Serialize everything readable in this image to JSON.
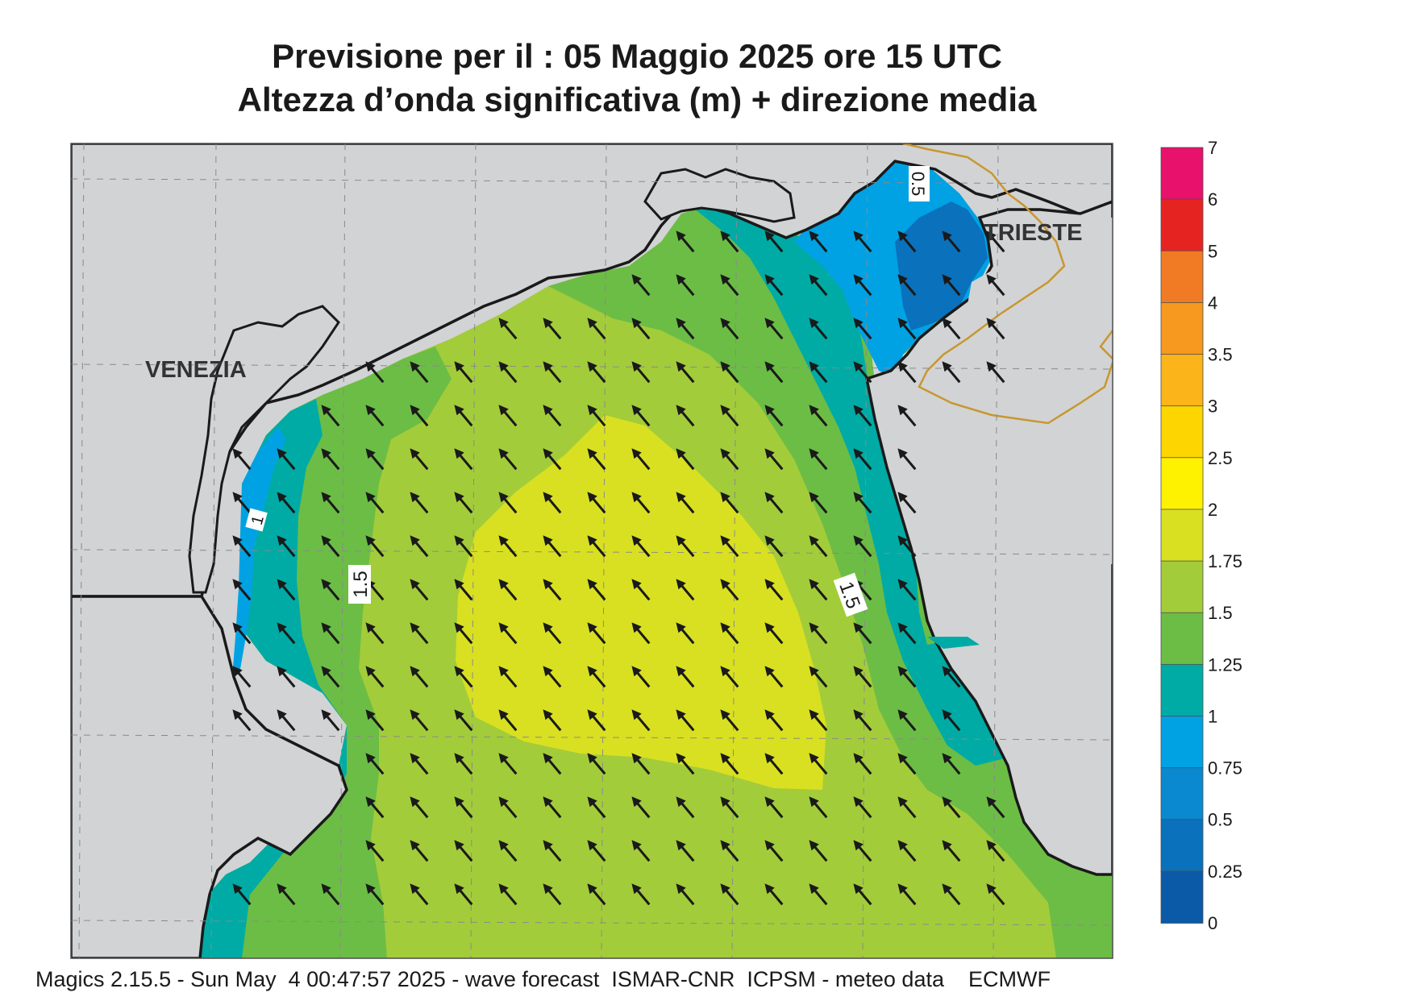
{
  "header": {
    "title_line1": "Previsione per il  :  05   Maggio  2025   ore 15 UTC",
    "title_line2": "Altezza d’onda significativa (m) + direzione media"
  },
  "map": {
    "city_labels": [
      "VENEZIA",
      "TRIESTE"
    ],
    "contour_labels": [
      "0.5",
      "1",
      "1.5",
      "1.5"
    ],
    "arrow_direction": "north-west"
  },
  "legend": {
    "ticks": [
      "7",
      "6",
      "5",
      "4",
      "3.5",
      "3",
      "2.5",
      "2",
      "1.75",
      "1.5",
      "1.25",
      "1",
      "0.75",
      "0.5",
      "0.25",
      "0"
    ],
    "colors": [
      "#e8116b",
      "#e52421",
      "#f07b24",
      "#f6991e",
      "#fbb41a",
      "#fdd500",
      "#fff200",
      "#d9e021",
      "#a3cc3a",
      "#6cbd45",
      "#00aba5",
      "#00a2e3",
      "#0a89d0",
      "#0a71bc",
      "#0b5aa8"
    ]
  },
  "colors": {
    "land": "#d2d3d5",
    "border": "#c8972e",
    "coast": "#1a1a1a"
  },
  "footer": {
    "text": "Magics 2.15.5 - Sun May  4 00:47:57 2025 - wave forecast  ISMAR-CNR  ICPSM - meteo data    ECMWF"
  }
}
